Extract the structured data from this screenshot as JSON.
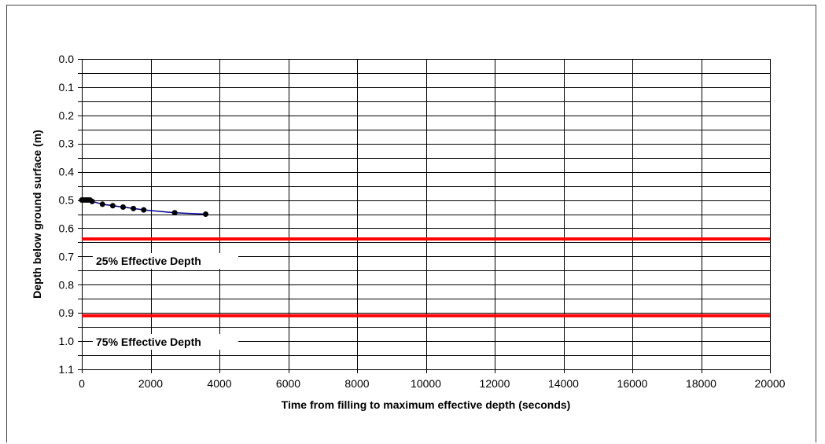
{
  "chart_data": {
    "type": "scatter",
    "xlabel": "Time from filling to maximum effective depth (seconds)",
    "ylabel": "Depth below ground surface (m)",
    "xlim": [
      0,
      20000
    ],
    "ylim": [
      0,
      1.1
    ],
    "y_inverted": true,
    "x_ticks": [
      0,
      2000,
      4000,
      6000,
      8000,
      10000,
      12000,
      14000,
      16000,
      18000,
      20000
    ],
    "y_ticks": [
      "0.0",
      "0.1",
      "0.2",
      "0.3",
      "0.4",
      "0.5",
      "0.6",
      "0.7",
      "0.8",
      "0.9",
      "1.0",
      "1.1"
    ],
    "y_minor_step": 0.05,
    "grid": true,
    "series": [
      {
        "x": [
          0,
          60,
          120,
          180,
          240,
          300,
          600,
          900,
          1200,
          1500,
          1800,
          2700,
          3600
        ],
        "y": [
          0.5,
          0.5,
          0.5,
          0.5,
          0.5,
          0.505,
          0.515,
          0.52,
          0.525,
          0.53,
          0.535,
          0.545,
          0.55
        ],
        "color": "#00008B",
        "marker_color": "#000000"
      }
    ],
    "reference_lines": [
      {
        "label": "25% Effective Depth",
        "y": 0.638,
        "color": "#FF0000"
      },
      {
        "label": "75% Effective Depth",
        "y": 0.91,
        "color": "#FF0000"
      }
    ]
  }
}
